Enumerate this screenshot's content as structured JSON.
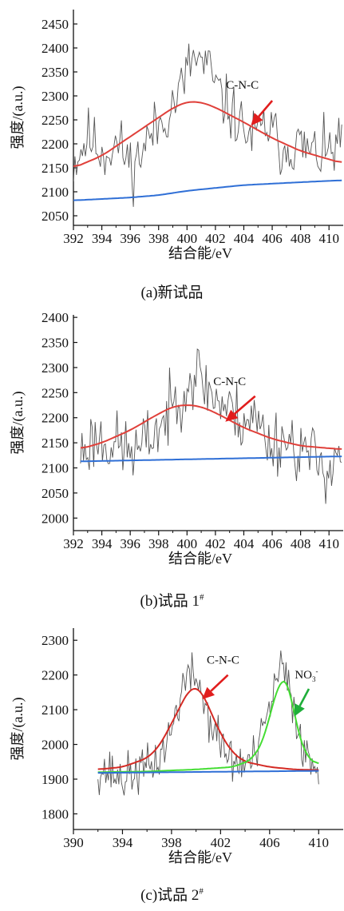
{
  "chart_data": [
    {
      "type": "line",
      "caption": "(a)新试品",
      "xlabel": "结合能/eV",
      "ylabel": "强度/(a.u.)",
      "xlim": [
        392,
        411
      ],
      "ylim": [
        2030,
        2480
      ],
      "xticks": [
        392,
        394,
        396,
        398,
        400,
        402,
        404,
        406,
        408,
        410
      ],
      "yticks": [
        2050,
        2100,
        2150,
        2200,
        2250,
        2300,
        2350,
        2400,
        2450
      ],
      "annotations": [
        {
          "text": "C-N-C",
          "x": 403.9,
          "y": 2315,
          "arrow_from": [
            406.0,
            2290
          ],
          "arrow_to": [
            404.5,
            2238
          ],
          "color": "#e11d1d"
        }
      ],
      "series": [
        {
          "role": "raw",
          "color": "#555555",
          "x_range": [
            392,
            410.9
          ],
          "count": 180,
          "seed": 11,
          "values": [
            2160,
            2215,
            2180,
            2200,
            2150,
            2210,
            2250,
            2300,
            2380,
            2360,
            2290,
            2250,
            2210,
            2240,
            2190,
            2200,
            2180,
            2180,
            2200
          ],
          "noise": 55
        },
        {
          "role": "fit",
          "color": "#e0403a",
          "x": [
            392,
            394,
            396,
            398,
            399,
            400,
            401,
            402,
            404,
            406,
            408,
            410.9
          ],
          "values": [
            2150,
            2175,
            2215,
            2255,
            2275,
            2288,
            2287,
            2276,
            2245,
            2212,
            2185,
            2160
          ]
        },
        {
          "role": "baseline",
          "color": "#2f6fd6",
          "x": [
            392,
            394,
            396,
            398,
            400,
            402,
            404,
            406,
            408,
            410.9
          ],
          "values": [
            2082,
            2085,
            2088,
            2093,
            2102,
            2108,
            2114,
            2117,
            2120,
            2124
          ]
        }
      ]
    },
    {
      "type": "line",
      "caption": "(b)试品 1",
      "caption_sup": "#",
      "xlabel": "结合能/eV",
      "ylabel": "强度/(a.u.)",
      "xlim": [
        392,
        411
      ],
      "ylim": [
        1975,
        2405
      ],
      "xticks": [
        392,
        394,
        396,
        398,
        400,
        402,
        404,
        406,
        408,
        410
      ],
      "yticks": [
        2000,
        2050,
        2100,
        2150,
        2200,
        2250,
        2300,
        2350,
        2400
      ],
      "annotations": [
        {
          "text": "C-N-C",
          "x": 403.0,
          "y": 2265,
          "arrow_from": [
            404.8,
            2243
          ],
          "arrow_to": [
            402.7,
            2192
          ],
          "color": "#e11d1d"
        }
      ],
      "series": [
        {
          "role": "raw",
          "color": "#555555",
          "x_range": [
            392.5,
            410.9
          ],
          "count": 180,
          "seed": 23,
          "values": [
            2130,
            2160,
            2150,
            2140,
            2130,
            2170,
            2200,
            2260,
            2290,
            2250,
            2220,
            2200,
            2200,
            2150,
            2160,
            2140,
            2120,
            2100,
            2140
          ],
          "noise": 60
        },
        {
          "role": "fit",
          "color": "#e0403a",
          "x": [
            392.5,
            394,
            396,
            398,
            399,
            400,
            401,
            402,
            404,
            406,
            408,
            410.9
          ],
          "values": [
            2138,
            2150,
            2175,
            2208,
            2222,
            2226,
            2222,
            2210,
            2180,
            2158,
            2144,
            2137
          ]
        },
        {
          "role": "baseline",
          "color": "#2f6fd6",
          "x": [
            392.5,
            410.9
          ],
          "values": [
            2113,
            2123
          ]
        }
      ]
    },
    {
      "type": "line",
      "caption": "(c)试品 2",
      "caption_sup": "#",
      "xlabel": "结合能/eV",
      "ylabel": "强度/(a.u.)",
      "xlim": [
        390,
        412
      ],
      "ylim": [
        1755,
        2335
      ],
      "xticks": [
        390,
        394,
        398,
        402,
        406,
        410
      ],
      "yticks": [
        1800,
        1900,
        2000,
        2100,
        2200,
        2300
      ],
      "annotations": [
        {
          "text": "C-N-C",
          "x": 402.2,
          "y": 2233,
          "arrow_from": [
            402.6,
            2200
          ],
          "arrow_to": [
            400.5,
            2130
          ],
          "color": "#e11d1d"
        },
        {
          "text": "NO",
          "sub": "3",
          "sup": "-",
          "x": 409.0,
          "y": 2190,
          "arrow_from": [
            409.2,
            2160
          ],
          "arrow_to": [
            408.0,
            2080
          ],
          "color": "#1fae3a"
        }
      ],
      "series": [
        {
          "role": "raw",
          "color": "#555555",
          "x_range": [
            392,
            410
          ],
          "count": 170,
          "seed": 37,
          "values": [
            1930,
            1920,
            1900,
            1920,
            1930,
            1960,
            2040,
            2180,
            2200,
            2080,
            2000,
            1950,
            1940,
            1970,
            2110,
            2230,
            2100,
            1960,
            1930
          ],
          "noise": 60
        },
        {
          "role": "fit",
          "color": "#d42a24",
          "x": [
            392,
            394,
            396,
            397,
            398,
            399,
            399.5,
            400,
            400.5,
            401,
            402,
            403,
            404,
            406,
            408,
            410
          ],
          "values": [
            1928,
            1935,
            1960,
            1995,
            2060,
            2130,
            2160,
            2165,
            2150,
            2110,
            2030,
            1975,
            1950,
            1935,
            1928,
            1926
          ]
        },
        {
          "role": "fit2",
          "color": "#44dd33",
          "x": [
            392,
            396,
            400,
            403,
            404.5,
            405.5,
            406.2,
            406.8,
            407.2,
            407.6,
            408.2,
            409,
            410
          ],
          "values": [
            1920,
            1922,
            1928,
            1935,
            1955,
            2010,
            2110,
            2180,
            2195,
            2170,
            2050,
            1965,
            1940
          ]
        },
        {
          "role": "baseline",
          "color": "#2f6fd6",
          "x": [
            392,
            410
          ],
          "values": [
            1918,
            1924
          ]
        }
      ]
    }
  ]
}
